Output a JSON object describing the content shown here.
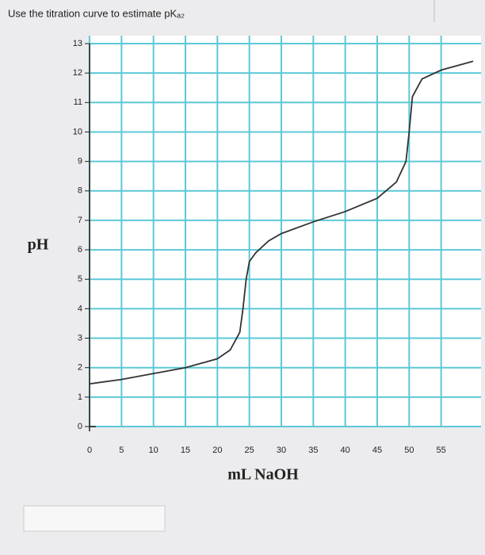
{
  "chart_data": {
    "type": "line",
    "title": "Use the titration curve to estimate pKₐ₂",
    "x_label": "mL NaOH",
    "y_label": "pH",
    "x": [
      0,
      5,
      10,
      15,
      20,
      22,
      23.5,
      24,
      24.5,
      25,
      26,
      28,
      30,
      35,
      40,
      45,
      48,
      49.5,
      50,
      50.5,
      52,
      55,
      60
    ],
    "values": [
      1.45,
      1.6,
      1.8,
      2.0,
      2.3,
      2.6,
      3.2,
      4.0,
      5.0,
      5.6,
      5.9,
      6.3,
      6.55,
      6.95,
      7.3,
      7.75,
      8.3,
      9.0,
      10.0,
      11.2,
      11.8,
      12.1,
      12.4
    ],
    "color": "#333333",
    "xlim": [
      0,
      60
    ],
    "xticks": [
      0,
      5,
      10,
      15,
      20,
      25,
      30,
      35,
      40,
      45,
      50,
      55
    ],
    "ylim": [
      0,
      13
    ],
    "yticks": [
      0,
      1,
      2,
      3,
      4,
      5,
      6,
      7,
      8,
      9,
      10,
      11,
      12,
      13
    ],
    "grid": true,
    "grid_color": "#5cc8d6"
  }
}
